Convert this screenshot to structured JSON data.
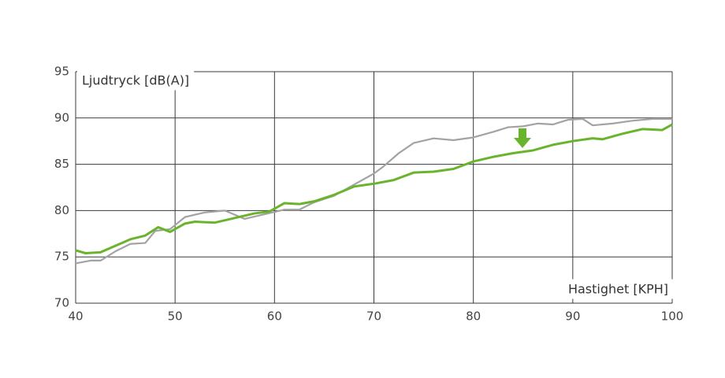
{
  "chart_data": {
    "type": "line",
    "y_label": "Ljudtryck [dB(A)]",
    "x_label": "Hastighet [KPH]",
    "xlim": [
      40,
      100
    ],
    "xticks": [
      40,
      50,
      60,
      70,
      80,
      90,
      100
    ],
    "ylim": [
      70,
      95
    ],
    "yticks": [
      70,
      75,
      80,
      85,
      90,
      95
    ],
    "grid": true,
    "series": [
      {
        "color": "#a3a3a3",
        "x": [
          40,
          41.5,
          42.5,
          44,
          45.5,
          47,
          48,
          49.5,
          51,
          53,
          55,
          57,
          59,
          61,
          62.5,
          64,
          66,
          68,
          70,
          71,
          72.5,
          74,
          76,
          78,
          80,
          82,
          83.5,
          85,
          86.5,
          88,
          89.5,
          91,
          92,
          94,
          96,
          98,
          100
        ],
        "values": [
          74.3,
          74.6,
          74.6,
          75.6,
          76.4,
          76.5,
          77.8,
          78.0,
          79.3,
          79.8,
          80.0,
          79.1,
          79.6,
          80.1,
          80.1,
          80.9,
          81.6,
          82.8,
          84.0,
          84.8,
          86.2,
          87.3,
          87.8,
          87.6,
          87.9,
          88.5,
          89.0,
          89.1,
          89.4,
          89.3,
          89.8,
          89.9,
          89.2,
          89.4,
          89.7,
          89.9,
          89.9
        ]
      },
      {
        "color": "#6ab42d",
        "x": [
          40,
          41,
          42.5,
          44,
          45.5,
          47,
          48.3,
          49.5,
          51,
          52,
          54,
          56,
          58,
          59.5,
          61,
          62.5,
          64,
          66,
          68,
          70,
          72,
          74,
          76,
          78,
          80,
          82,
          84,
          86,
          88,
          90,
          92,
          93,
          95,
          97,
          99,
          100
        ],
        "values": [
          75.7,
          75.4,
          75.5,
          76.2,
          76.9,
          77.3,
          78.2,
          77.7,
          78.6,
          78.8,
          78.7,
          79.2,
          79.7,
          79.9,
          80.8,
          80.7,
          81.0,
          81.7,
          82.6,
          82.9,
          83.3,
          84.1,
          84.2,
          84.5,
          85.3,
          85.8,
          86.2,
          86.5,
          87.1,
          87.5,
          87.8,
          87.7,
          88.3,
          88.8,
          88.7,
          89.3
        ]
      }
    ]
  }
}
